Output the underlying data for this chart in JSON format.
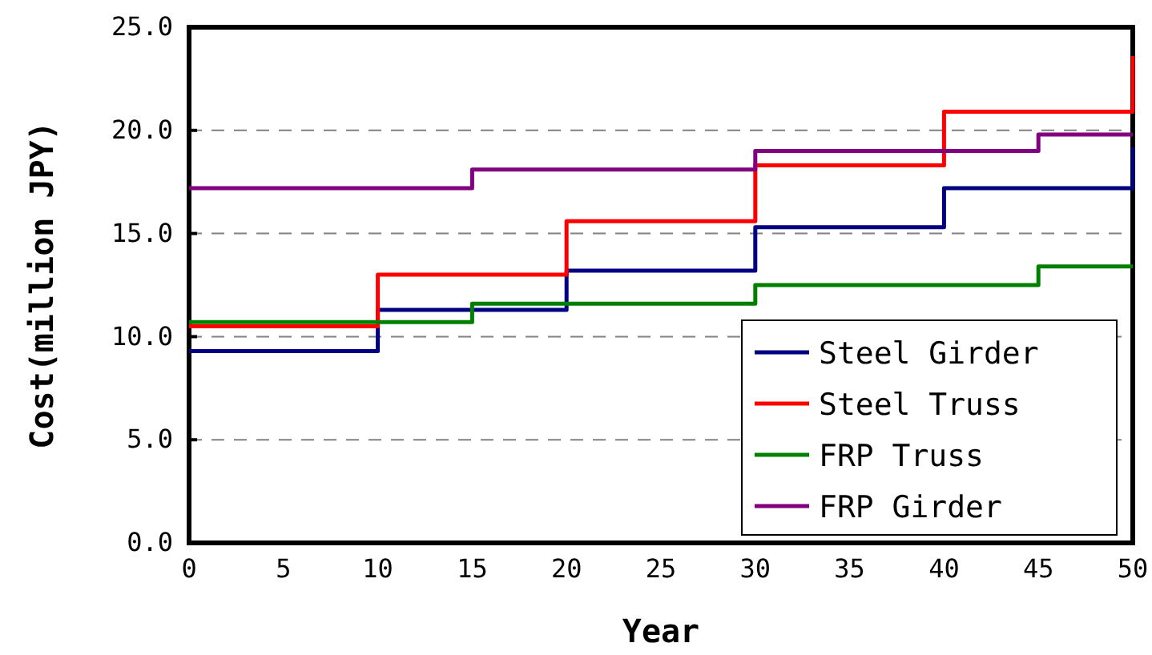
{
  "chart_data": {
    "type": "step",
    "xlabel": "Year",
    "ylabel": "Cost(million JPY)",
    "xlim": [
      0,
      50
    ],
    "xticks": [
      0,
      5,
      10,
      15,
      20,
      25,
      30,
      35,
      40,
      45,
      50
    ],
    "ylim": [
      0,
      25
    ],
    "yticks": [
      {
        "value": 0,
        "label": "0.0"
      },
      {
        "value": 5,
        "label": "5.0"
      },
      {
        "value": 10,
        "label": "10.0"
      },
      {
        "value": 15,
        "label": "15.0"
      },
      {
        "value": 20,
        "label": "20.0"
      },
      {
        "value": 25,
        "label": "25.0"
      }
    ],
    "grid": "y",
    "legend": "bottom right",
    "line_style": "solid",
    "marker": "none",
    "series": [
      {
        "name": "Steel Girder",
        "color": "#000080",
        "x": [
          0,
          10,
          20,
          30,
          40,
          50
        ],
        "values": [
          9.3,
          11.3,
          13.2,
          15.3,
          17.2,
          19.2
        ]
      },
      {
        "name": "Steel Truss",
        "color": "#ff0000",
        "x": [
          0,
          10,
          20,
          30,
          40,
          50
        ],
        "values": [
          10.5,
          13.0,
          15.6,
          18.3,
          20.9,
          23.6
        ]
      },
      {
        "name": "FRP Truss",
        "color": "#008000",
        "x": [
          0,
          15,
          30,
          45,
          50
        ],
        "values": [
          10.7,
          11.6,
          12.5,
          13.4,
          13.4
        ]
      },
      {
        "name": "FRP Girder",
        "color": "#800080",
        "x": [
          0,
          15,
          30,
          45,
          50
        ],
        "values": [
          17.2,
          18.1,
          19.0,
          19.8,
          19.8
        ]
      }
    ]
  }
}
